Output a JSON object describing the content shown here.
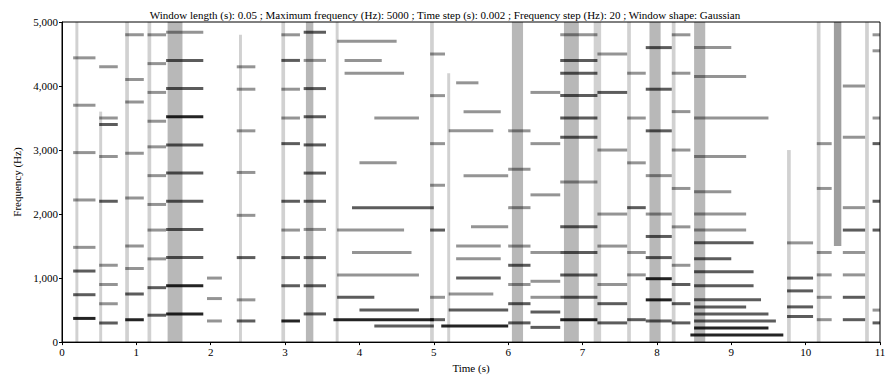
{
  "chart_data": {
    "type": "spectrogram",
    "title": "Window length (s): 0.05 ; Maximum frequency (Hz): 5000 ; Time step (s): 0.002 ; Frequency step (Hz): 20 ; Window shape: Gaussian",
    "x_label": "Time (s)",
    "y_label": "Frequency (Hz)",
    "xlim": [
      0,
      11
    ],
    "xticks": [
      0,
      1,
      2,
      3,
      4,
      5,
      6,
      7,
      8,
      9,
      10,
      11
    ],
    "ylim": [
      0,
      5000
    ],
    "yticks": [
      0,
      1000,
      2000,
      3000,
      4000,
      5000
    ],
    "grid": false,
    "color": "#000000",
    "segments": [
      [
        0.15,
        0.45,
        370,
        3
      ],
      [
        0.15,
        0.45,
        740,
        2
      ],
      [
        0.15,
        0.45,
        1110,
        2
      ],
      [
        0.15,
        0.45,
        1480,
        1
      ],
      [
        0.15,
        0.45,
        2220,
        1
      ],
      [
        0.15,
        0.45,
        2960,
        1
      ],
      [
        0.15,
        0.45,
        3700,
        1
      ],
      [
        0.15,
        0.45,
        4440,
        1
      ],
      [
        0.5,
        0.75,
        300,
        2
      ],
      [
        0.5,
        0.75,
        600,
        1
      ],
      [
        0.5,
        0.75,
        900,
        1
      ],
      [
        0.5,
        0.75,
        1200,
        1
      ],
      [
        0.5,
        0.75,
        2200,
        2
      ],
      [
        0.5,
        0.75,
        2900,
        1
      ],
      [
        0.5,
        0.75,
        3400,
        2
      ],
      [
        0.5,
        0.75,
        3500,
        1
      ],
      [
        0.5,
        0.75,
        4300,
        1
      ],
      [
        0.85,
        1.1,
        350,
        3
      ],
      [
        0.85,
        1.1,
        750,
        2
      ],
      [
        0.85,
        1.1,
        1150,
        1
      ],
      [
        0.85,
        1.1,
        1500,
        1
      ],
      [
        0.85,
        1.1,
        2250,
        1
      ],
      [
        0.85,
        1.1,
        2950,
        1
      ],
      [
        0.85,
        1.1,
        3750,
        1
      ],
      [
        0.85,
        1.1,
        4100,
        1
      ],
      [
        0.85,
        1.1,
        4800,
        1
      ],
      [
        1.15,
        1.4,
        420,
        2
      ],
      [
        1.15,
        1.4,
        850,
        2
      ],
      [
        1.15,
        1.4,
        1300,
        1
      ],
      [
        1.15,
        1.4,
        1750,
        1
      ],
      [
        1.15,
        1.4,
        2150,
        1
      ],
      [
        1.15,
        1.4,
        2600,
        1
      ],
      [
        1.15,
        1.4,
        3050,
        1
      ],
      [
        1.15,
        1.4,
        3450,
        1
      ],
      [
        1.15,
        1.4,
        3900,
        1
      ],
      [
        1.15,
        1.4,
        4350,
        1
      ],
      [
        1.15,
        1.4,
        4800,
        1
      ],
      [
        1.4,
        1.9,
        440,
        3
      ],
      [
        1.4,
        1.9,
        880,
        3
      ],
      [
        1.4,
        1.9,
        1320,
        2
      ],
      [
        1.4,
        1.9,
        1760,
        2
      ],
      [
        1.4,
        1.9,
        2200,
        2
      ],
      [
        1.4,
        1.9,
        2640,
        2
      ],
      [
        1.4,
        1.9,
        3080,
        2
      ],
      [
        1.4,
        1.9,
        3520,
        3
      ],
      [
        1.4,
        1.9,
        3960,
        2
      ],
      [
        1.4,
        1.9,
        4400,
        2
      ],
      [
        1.4,
        1.9,
        4840,
        1
      ],
      [
        1.95,
        2.15,
        330,
        1
      ],
      [
        1.95,
        2.15,
        680,
        1
      ],
      [
        1.95,
        2.15,
        1000,
        1
      ],
      [
        2.35,
        2.6,
        330,
        2
      ],
      [
        2.35,
        2.6,
        660,
        1
      ],
      [
        2.35,
        2.6,
        1320,
        2
      ],
      [
        2.35,
        2.6,
        1980,
        1
      ],
      [
        2.35,
        2.6,
        2650,
        1
      ],
      [
        2.35,
        2.6,
        3300,
        1
      ],
      [
        2.35,
        2.6,
        3950,
        1
      ],
      [
        2.35,
        2.6,
        4300,
        1
      ],
      [
        2.95,
        3.2,
        330,
        3
      ],
      [
        2.95,
        3.2,
        880,
        2
      ],
      [
        2.95,
        3.2,
        1320,
        2
      ],
      [
        2.95,
        3.2,
        1750,
        1
      ],
      [
        2.95,
        3.2,
        2200,
        2
      ],
      [
        2.95,
        3.2,
        3100,
        2
      ],
      [
        2.95,
        3.2,
        3500,
        1
      ],
      [
        2.95,
        3.2,
        3950,
        1
      ],
      [
        2.95,
        3.2,
        4400,
        2
      ],
      [
        2.95,
        3.2,
        4800,
        1
      ],
      [
        3.25,
        3.55,
        440,
        2
      ],
      [
        3.25,
        3.55,
        880,
        2
      ],
      [
        3.25,
        3.55,
        1320,
        2
      ],
      [
        3.25,
        3.55,
        1760,
        1
      ],
      [
        3.25,
        3.55,
        2200,
        2
      ],
      [
        3.25,
        3.55,
        2640,
        2
      ],
      [
        3.25,
        3.55,
        3080,
        2
      ],
      [
        3.25,
        3.55,
        3520,
        2
      ],
      [
        3.25,
        3.55,
        3960,
        2
      ],
      [
        3.25,
        3.55,
        4400,
        1
      ],
      [
        3.25,
        3.55,
        4840,
        2
      ],
      [
        3.65,
        5.0,
        350,
        3
      ],
      [
        3.9,
        5.0,
        2100,
        2
      ],
      [
        3.7,
        4.6,
        1750,
        1
      ],
      [
        3.7,
        4.8,
        1050,
        1
      ],
      [
        3.7,
        4.2,
        700,
        2
      ],
      [
        3.8,
        4.6,
        4200,
        1
      ],
      [
        3.8,
        4.3,
        4400,
        1
      ],
      [
        3.7,
        4.5,
        4700,
        1
      ],
      [
        4.0,
        4.5,
        2800,
        1
      ],
      [
        4.2,
        4.8,
        3500,
        1
      ],
      [
        3.9,
        4.7,
        1400,
        1
      ],
      [
        4.0,
        4.8,
        500,
        2
      ],
      [
        4.2,
        5.0,
        250,
        2
      ],
      [
        4.95,
        5.15,
        350,
        2
      ],
      [
        4.95,
        5.15,
        700,
        1
      ],
      [
        4.95,
        5.15,
        1750,
        2
      ],
      [
        4.95,
        5.15,
        2450,
        1
      ],
      [
        4.95,
        5.15,
        3100,
        1
      ],
      [
        4.95,
        5.15,
        3850,
        1
      ],
      [
        4.95,
        5.15,
        4500,
        1
      ],
      [
        5.1,
        6.0,
        250,
        3
      ],
      [
        5.2,
        6.0,
        500,
        2
      ],
      [
        5.2,
        5.8,
        750,
        1
      ],
      [
        5.3,
        5.9,
        1000,
        2
      ],
      [
        5.3,
        5.9,
        1300,
        1
      ],
      [
        5.3,
        5.9,
        1500,
        1
      ],
      [
        5.2,
        5.8,
        3300,
        1
      ],
      [
        5.4,
        6.0,
        2600,
        1
      ],
      [
        5.4,
        5.9,
        3600,
        1
      ],
      [
        5.3,
        5.6,
        4050,
        1
      ],
      [
        5.5,
        6.0,
        1800,
        1
      ],
      [
        6.0,
        6.3,
        300,
        2
      ],
      [
        6.0,
        6.3,
        600,
        2
      ],
      [
        6.0,
        6.3,
        900,
        1
      ],
      [
        6.0,
        6.3,
        1200,
        2
      ],
      [
        6.0,
        6.3,
        1500,
        1
      ],
      [
        6.0,
        6.3,
        2100,
        1
      ],
      [
        6.0,
        6.3,
        2700,
        1
      ],
      [
        6.0,
        6.3,
        3300,
        1
      ],
      [
        6.3,
        6.7,
        230,
        2
      ],
      [
        6.3,
        6.7,
        470,
        2
      ],
      [
        6.3,
        6.7,
        700,
        1
      ],
      [
        6.3,
        6.7,
        950,
        1
      ],
      [
        6.3,
        6.7,
        1400,
        1
      ],
      [
        6.3,
        6.7,
        2300,
        1
      ],
      [
        6.3,
        6.7,
        3100,
        1
      ],
      [
        6.3,
        6.7,
        3900,
        1
      ],
      [
        6.7,
        7.2,
        350,
        3
      ],
      [
        6.7,
        7.2,
        700,
        2
      ],
      [
        6.7,
        7.2,
        1050,
        2
      ],
      [
        6.7,
        7.2,
        1400,
        2
      ],
      [
        6.7,
        7.2,
        1800,
        2
      ],
      [
        6.7,
        7.2,
        2500,
        1
      ],
      [
        6.7,
        7.2,
        3200,
        2
      ],
      [
        6.7,
        7.2,
        3500,
        2
      ],
      [
        6.7,
        7.2,
        3850,
        2
      ],
      [
        6.7,
        7.2,
        4200,
        2
      ],
      [
        6.7,
        7.2,
        4400,
        2
      ],
      [
        6.7,
        7.2,
        4800,
        1
      ],
      [
        7.2,
        7.6,
        300,
        2
      ],
      [
        7.2,
        7.6,
        600,
        2
      ],
      [
        7.2,
        7.6,
        900,
        1
      ],
      [
        7.2,
        7.6,
        1500,
        1
      ],
      [
        7.2,
        7.6,
        2000,
        1
      ],
      [
        7.2,
        7.6,
        3000,
        1
      ],
      [
        7.2,
        7.6,
        3900,
        2
      ],
      [
        7.2,
        7.6,
        4500,
        1
      ],
      [
        7.6,
        7.85,
        350,
        2
      ],
      [
        7.6,
        7.85,
        1050,
        1
      ],
      [
        7.6,
        7.85,
        1400,
        1
      ],
      [
        7.6,
        7.85,
        2100,
        2
      ],
      [
        7.6,
        7.85,
        2800,
        1
      ],
      [
        7.6,
        7.85,
        3500,
        1
      ],
      [
        7.6,
        7.85,
        4200,
        1
      ],
      [
        7.85,
        8.2,
        330,
        2
      ],
      [
        7.85,
        8.2,
        660,
        3
      ],
      [
        7.85,
        8.2,
        990,
        3
      ],
      [
        7.85,
        8.2,
        1320,
        2
      ],
      [
        7.85,
        8.2,
        1650,
        2
      ],
      [
        7.85,
        8.2,
        2000,
        1
      ],
      [
        7.85,
        8.2,
        2600,
        1
      ],
      [
        7.85,
        8.2,
        3300,
        2
      ],
      [
        7.85,
        8.2,
        3950,
        2
      ],
      [
        7.85,
        8.2,
        4600,
        2
      ],
      [
        8.2,
        8.45,
        300,
        2
      ],
      [
        8.2,
        8.45,
        600,
        2
      ],
      [
        8.2,
        8.45,
        900,
        2
      ],
      [
        8.2,
        8.45,
        1200,
        1
      ],
      [
        8.2,
        8.45,
        1800,
        1
      ],
      [
        8.2,
        8.45,
        2400,
        1
      ],
      [
        8.2,
        8.45,
        3000,
        1
      ],
      [
        8.2,
        8.45,
        3600,
        1
      ],
      [
        8.2,
        8.45,
        4200,
        1
      ],
      [
        8.2,
        8.45,
        4800,
        1
      ],
      [
        8.45,
        9.7,
        110,
        3
      ],
      [
        8.5,
        9.5,
        220,
        3
      ],
      [
        8.5,
        9.6,
        330,
        2
      ],
      [
        8.5,
        9.5,
        440,
        2
      ],
      [
        8.5,
        9.2,
        550,
        2
      ],
      [
        8.5,
        9.4,
        660,
        2
      ],
      [
        8.5,
        9.3,
        880,
        2
      ],
      [
        8.5,
        9.3,
        1100,
        2
      ],
      [
        8.5,
        9.0,
        1300,
        2
      ],
      [
        8.5,
        9.3,
        1550,
        2
      ],
      [
        8.5,
        9.2,
        1750,
        1
      ],
      [
        8.5,
        9.2,
        2000,
        1
      ],
      [
        8.5,
        9.0,
        2350,
        1
      ],
      [
        8.5,
        9.2,
        2900,
        1
      ],
      [
        8.5,
        9.5,
        3500,
        1
      ],
      [
        8.5,
        9.2,
        4150,
        1
      ],
      [
        8.5,
        9.0,
        4600,
        1
      ],
      [
        9.75,
        10.1,
        400,
        2
      ],
      [
        9.75,
        10.1,
        550,
        2
      ],
      [
        9.75,
        10.1,
        800,
        2
      ],
      [
        9.75,
        10.1,
        1000,
        2
      ],
      [
        9.75,
        10.1,
        1550,
        1
      ],
      [
        10.15,
        10.35,
        350,
        1
      ],
      [
        10.15,
        10.35,
        700,
        1
      ],
      [
        10.15,
        10.35,
        1050,
        1
      ],
      [
        10.15,
        10.35,
        1400,
        1
      ],
      [
        10.15,
        10.35,
        2400,
        1
      ],
      [
        10.15,
        10.35,
        3100,
        1
      ],
      [
        10.5,
        10.8,
        350,
        2
      ],
      [
        10.5,
        10.8,
        700,
        2
      ],
      [
        10.5,
        10.8,
        1050,
        1
      ],
      [
        10.5,
        10.8,
        1400,
        1
      ],
      [
        10.5,
        10.8,
        1750,
        2
      ],
      [
        10.5,
        10.8,
        2100,
        1
      ],
      [
        10.5,
        10.8,
        3200,
        1
      ],
      [
        10.5,
        10.8,
        4000,
        1
      ],
      [
        10.9,
        11.0,
        300,
        2
      ],
      [
        10.9,
        11.0,
        500,
        1
      ],
      [
        10.9,
        11.0,
        1750,
        2
      ],
      [
        10.9,
        11.0,
        2200,
        2
      ],
      [
        10.9,
        11.0,
        3100,
        2
      ],
      [
        10.9,
        11.0,
        3500,
        1
      ],
      [
        10.9,
        11.0,
        4550,
        1
      ],
      [
        10.9,
        11.0,
        4800,
        1
      ]
    ],
    "bands": [
      [
        0.18,
        0.22,
        0,
        5000,
        1
      ],
      [
        0.5,
        0.54,
        0,
        3600,
        1
      ],
      [
        0.85,
        0.9,
        0,
        5000,
        1
      ],
      [
        1.15,
        1.2,
        0,
        5000,
        1
      ],
      [
        1.42,
        1.62,
        0,
        5000,
        2
      ],
      [
        2.38,
        2.42,
        0,
        4800,
        1
      ],
      [
        2.95,
        3.0,
        0,
        5000,
        1
      ],
      [
        3.28,
        3.38,
        0,
        5000,
        2
      ],
      [
        3.68,
        3.72,
        0,
        5000,
        1
      ],
      [
        4.95,
        5.0,
        0,
        5000,
        1
      ],
      [
        5.18,
        5.22,
        0,
        4200,
        1
      ],
      [
        6.05,
        6.2,
        0,
        5000,
        2
      ],
      [
        6.75,
        6.95,
        0,
        5000,
        2
      ],
      [
        7.15,
        7.25,
        0,
        5000,
        1
      ],
      [
        7.6,
        7.65,
        0,
        5000,
        1
      ],
      [
        7.9,
        8.05,
        0,
        5000,
        2
      ],
      [
        8.2,
        8.25,
        0,
        5000,
        1
      ],
      [
        8.5,
        8.65,
        0,
        5000,
        2
      ],
      [
        9.75,
        9.8,
        0,
        3000,
        1
      ],
      [
        10.15,
        10.2,
        0,
        5000,
        1
      ],
      [
        10.38,
        10.48,
        1500,
        5000,
        3
      ],
      [
        10.8,
        10.85,
        0,
        5000,
        1
      ]
    ]
  }
}
